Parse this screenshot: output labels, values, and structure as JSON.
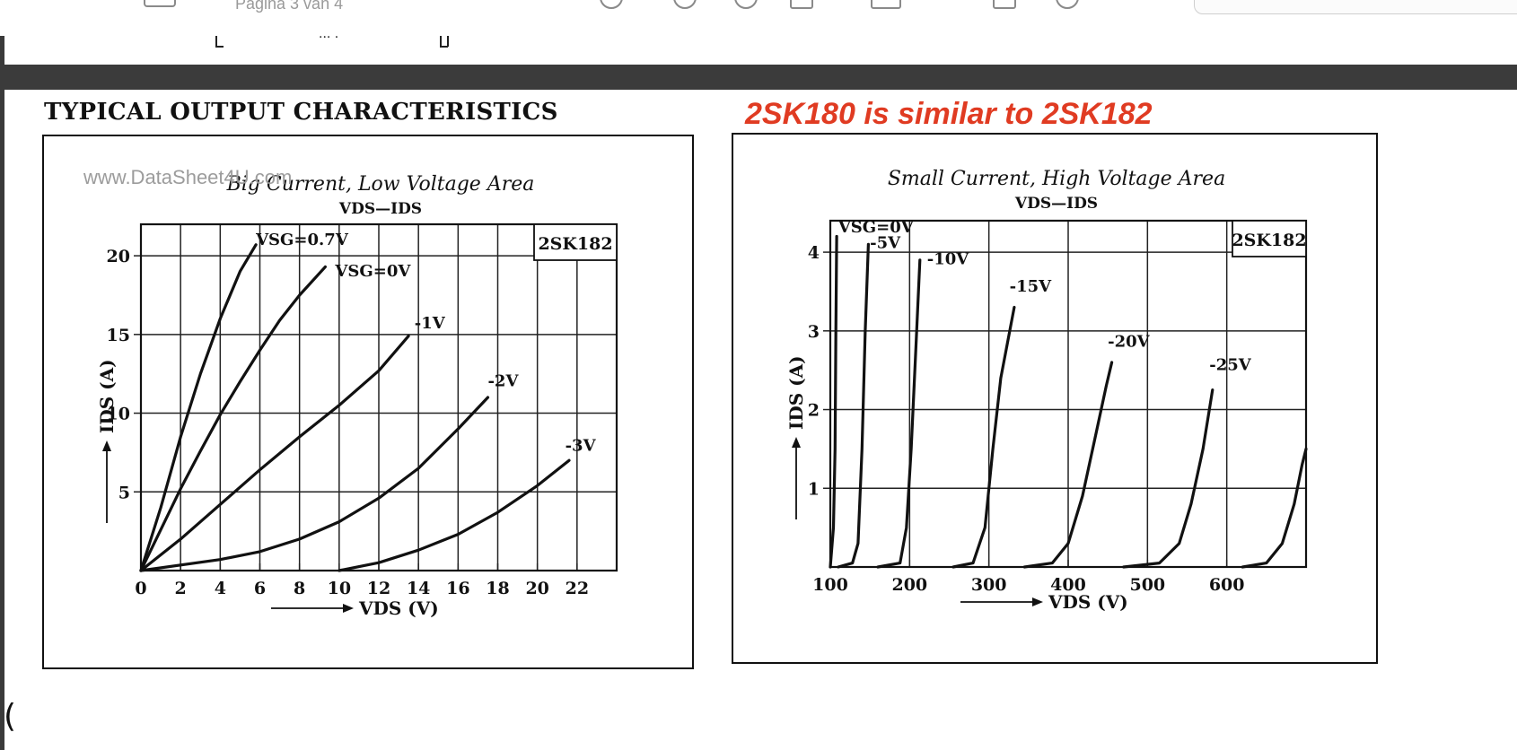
{
  "viewer": {
    "page_indicator": "Pagina 3 van 4"
  },
  "document": {
    "heading": "TYPICAL OUTPUT CHARACTERISTICS",
    "note": "2SK180 is similar to 2SK182",
    "watermark": "www.DataSheet4U.com"
  },
  "chart_data": [
    {
      "type": "line",
      "title": "Big Current, Low Voltage Area",
      "subtitle": "VDS—IDS",
      "xlabel": "VDS (V)",
      "ylabel": "IDS (A)",
      "badge": "2SK182",
      "xlim": [
        0,
        24
      ],
      "ylim": [
        0,
        22
      ],
      "x_ticks": [
        0,
        2,
        4,
        6,
        8,
        10,
        12,
        14,
        16,
        18,
        20,
        22
      ],
      "y_ticks": [
        5,
        10,
        15,
        20
      ],
      "grid": true,
      "series": [
        {
          "name": "VSG=0.7V",
          "points": [
            [
              0,
              0
            ],
            [
              1,
              4
            ],
            [
              2,
              8.5
            ],
            [
              3,
              12.5
            ],
            [
              4,
              16
            ],
            [
              5,
              19
            ],
            [
              5.8,
              20.7
            ]
          ]
        },
        {
          "name": "VSG=0V",
          "points": [
            [
              0,
              0
            ],
            [
              1,
              2.6
            ],
            [
              2,
              5.2
            ],
            [
              3,
              7.6
            ],
            [
              4,
              9.9
            ],
            [
              5,
              12
            ],
            [
              6,
              14
            ],
            [
              7,
              15.9
            ],
            [
              8,
              17.5
            ],
            [
              9.3,
              19.3
            ]
          ]
        },
        {
          "name": "-1V",
          "points": [
            [
              0,
              0
            ],
            [
              2,
              2
            ],
            [
              4,
              4.2
            ],
            [
              6,
              6.4
            ],
            [
              8,
              8.5
            ],
            [
              10,
              10.5
            ],
            [
              12,
              12.7
            ],
            [
              13.5,
              14.9
            ]
          ]
        },
        {
          "name": "-2V",
          "points": [
            [
              0,
              0
            ],
            [
              4,
              0.7
            ],
            [
              6,
              1.2
            ],
            [
              8,
              2
            ],
            [
              10,
              3.1
            ],
            [
              12,
              4.6
            ],
            [
              14,
              6.5
            ],
            [
              16,
              9
            ],
            [
              17.5,
              11
            ]
          ]
        },
        {
          "name": "-3V",
          "points": [
            [
              10,
              0
            ],
            [
              12,
              0.5
            ],
            [
              14,
              1.3
            ],
            [
              16,
              2.3
            ],
            [
              18,
              3.7
            ],
            [
              20,
              5.4
            ],
            [
              21.6,
              7
            ]
          ]
        }
      ],
      "curve_labels": [
        {
          "text": "VSG=0.7V",
          "x": 5.8,
          "y": 20.7
        },
        {
          "text": "VSG=0V",
          "x": 9.8,
          "y": 18.7
        },
        {
          "text": "-1V",
          "x": 13.8,
          "y": 15.4
        },
        {
          "text": "-2V",
          "x": 17.5,
          "y": 11.7
        },
        {
          "text": "-3V",
          "x": 21.4,
          "y": 7.6
        }
      ]
    },
    {
      "type": "line",
      "title": "Small Current, High Voltage Area",
      "subtitle": "VDS—IDS",
      "xlabel": "VDS (V)",
      "ylabel": "IDS (A)",
      "badge": "2SK182",
      "xlim": [
        100,
        700
      ],
      "ylim": [
        0,
        4.4
      ],
      "x_ticks": [
        100,
        200,
        300,
        400,
        500,
        600
      ],
      "y_ticks": [
        1,
        2,
        3,
        4
      ],
      "grid": true,
      "series": [
        {
          "name": "VSG=0V",
          "points": [
            [
              100,
              0
            ],
            [
              104,
              0.5
            ],
            [
              106,
              1.5
            ],
            [
              107,
              3
            ],
            [
              108,
              4.2
            ]
          ]
        },
        {
          "name": "-5V",
          "points": [
            [
              110,
              0
            ],
            [
              128,
              0.05
            ],
            [
              135,
              0.3
            ],
            [
              140,
              1.5
            ],
            [
              144,
              3
            ],
            [
              148,
              4.1
            ]
          ]
        },
        {
          "name": "-10V",
          "points": [
            [
              160,
              0
            ],
            [
              188,
              0.05
            ],
            [
              196,
              0.5
            ],
            [
              202,
              1.5
            ],
            [
              208,
              2.8
            ],
            [
              213,
              3.9
            ]
          ]
        },
        {
          "name": "-15V",
          "points": [
            [
              255,
              0
            ],
            [
              280,
              0.05
            ],
            [
              295,
              0.5
            ],
            [
              305,
              1.5
            ],
            [
              315,
              2.4
            ],
            [
              332,
              3.3
            ]
          ]
        },
        {
          "name": "-20V",
          "points": [
            [
              345,
              0
            ],
            [
              380,
              0.05
            ],
            [
              400,
              0.3
            ],
            [
              418,
              0.9
            ],
            [
              433,
              1.6
            ],
            [
              448,
              2.3
            ],
            [
              455,
              2.6
            ]
          ]
        },
        {
          "name": "-25V",
          "points": [
            [
              470,
              0
            ],
            [
              515,
              0.05
            ],
            [
              540,
              0.3
            ],
            [
              555,
              0.8
            ],
            [
              570,
              1.5
            ],
            [
              582,
              2.25
            ]
          ]
        },
        {
          "name": "",
          "points": [
            [
              620,
              0
            ],
            [
              650,
              0.05
            ],
            [
              670,
              0.3
            ],
            [
              685,
              0.8
            ],
            [
              695,
              1.3
            ],
            [
              700,
              1.5
            ]
          ]
        }
      ],
      "curve_labels": [
        {
          "text": "VSG=0V",
          "x": 110,
          "y": 4.25
        },
        {
          "text": "-5V",
          "x": 150,
          "y": 4.05
        },
        {
          "text": "-10V",
          "x": 222,
          "y": 3.85
        },
        {
          "text": "-15V",
          "x": 326,
          "y": 3.5
        },
        {
          "text": "-20V",
          "x": 450,
          "y": 2.8
        },
        {
          "text": "-25V",
          "x": 578,
          "y": 2.5
        }
      ]
    }
  ]
}
